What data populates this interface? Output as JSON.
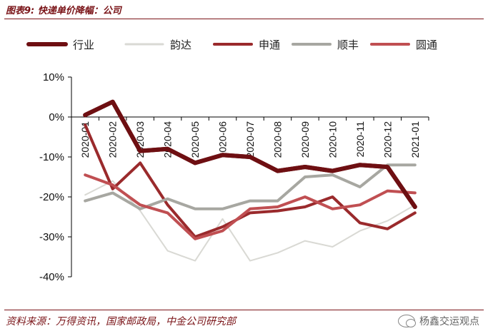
{
  "figure_title": "图表9: 快递单价降幅：公司",
  "source_note": "资料来源：万得资讯，国家邮政局，中金公司研究部",
  "watermark": "杨鑫交运观点",
  "chart_data": {
    "type": "line",
    "title": "",
    "xlabel": "",
    "ylabel": "",
    "ylim": [
      -40,
      10
    ],
    "yticks": [
      "10%",
      "0%",
      "-10%",
      "-20%",
      "-30%",
      "-40%"
    ],
    "grid": false,
    "legend_position": "top",
    "categories": [
      "2020-01",
      "2020-02",
      "2020-03",
      "2020-04",
      "2020-05",
      "2020-06",
      "2020-07",
      "2020-08",
      "2020-09",
      "2020-10",
      "2020-11",
      "2020-12",
      "2021-01"
    ],
    "series": [
      {
        "name": "行业",
        "color": "#6e0f12",
        "width": 6,
        "values": [
          0.5,
          3.8,
          -8.5,
          -8,
          -11.5,
          -9.5,
          -10,
          -13.5,
          -12.5,
          -13.5,
          -12,
          -12.5,
          -22.5
        ]
      },
      {
        "name": "韵达",
        "color": "#d9d9d4",
        "width": 2,
        "values": [
          -19.5,
          -16,
          -23.5,
          -33.5,
          -36,
          -25.5,
          -36,
          -34,
          -31,
          -32.5,
          -28.5,
          -26,
          -22
        ]
      },
      {
        "name": "申通",
        "color": "#9a2a2c",
        "width": 4,
        "values": [
          -2,
          -18,
          -11.5,
          -22,
          -30,
          -27.5,
          -24,
          -23.5,
          -22.5,
          -20,
          -26.5,
          -28,
          -24
        ]
      },
      {
        "name": "顺丰",
        "color": "#a7a7a1",
        "width": 4,
        "values": [
          -21,
          -19,
          -23,
          -20.5,
          -23,
          -23,
          -21,
          -21,
          -15,
          -14.5,
          -17.5,
          -12,
          -12
        ]
      },
      {
        "name": "圆通",
        "color": "#c04f52",
        "width": 4,
        "values": [
          -14.5,
          -17,
          -22,
          -24,
          -30.5,
          -28.5,
          -23,
          -22.5,
          -20,
          -23,
          -22,
          -18.5,
          -19
        ]
      }
    ]
  }
}
